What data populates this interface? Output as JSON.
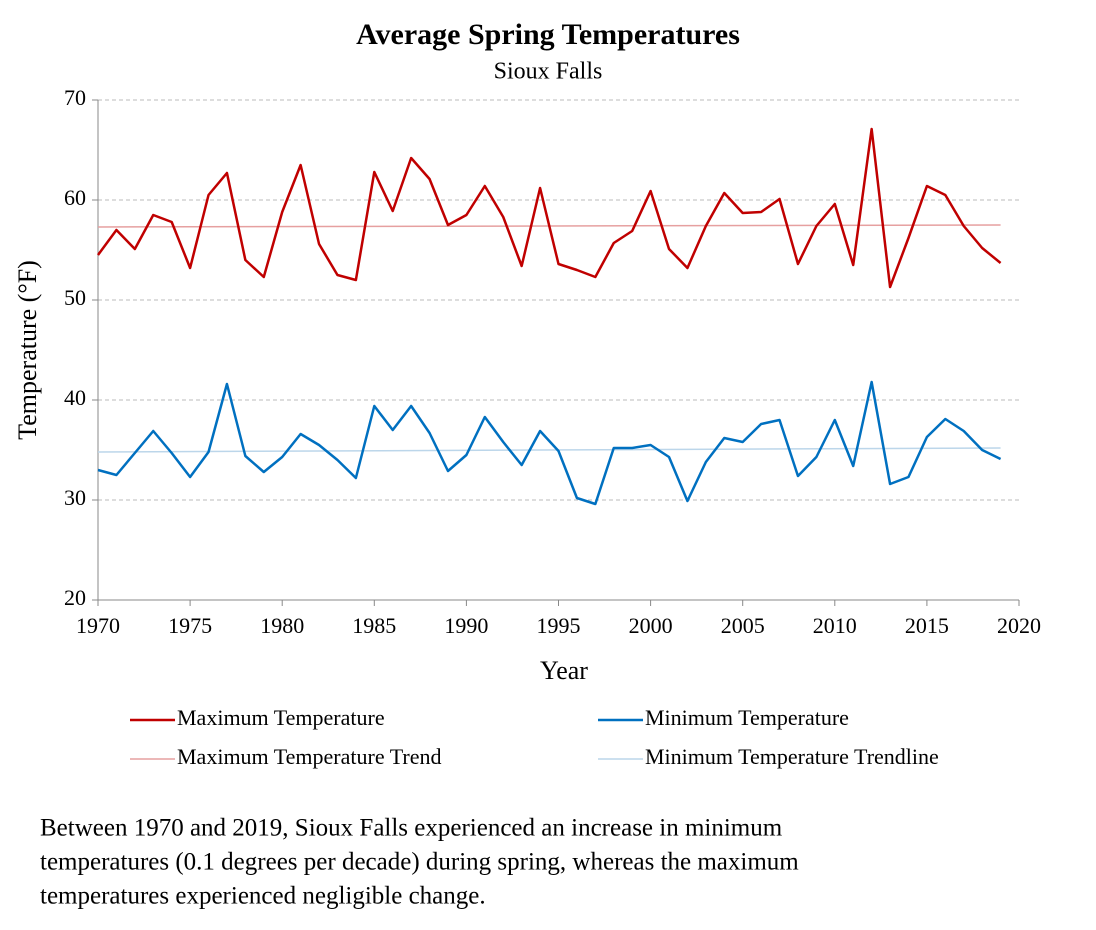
{
  "chart_data": {
    "type": "line",
    "title": "Average Spring Temperatures",
    "subtitle": "Sioux Falls",
    "x_label": "Year",
    "y_label": "Temperature (°F)",
    "x": [
      1970,
      1971,
      1972,
      1973,
      1974,
      1975,
      1976,
      1977,
      1978,
      1979,
      1980,
      1981,
      1982,
      1983,
      1984,
      1985,
      1986,
      1987,
      1988,
      1989,
      1990,
      1991,
      1992,
      1993,
      1994,
      1995,
      1996,
      1997,
      1998,
      1999,
      2000,
      2001,
      2002,
      2003,
      2004,
      2005,
      2006,
      2007,
      2008,
      2009,
      2010,
      2011,
      2012,
      2013,
      2014,
      2015,
      2016,
      2017,
      2018,
      2019
    ],
    "series": [
      {
        "name": "Maximum Temperature",
        "color": "#c00000",
        "width": 2.5,
        "values": [
          54.5,
          57,
          55.1,
          58.5,
          57.8,
          53.2,
          60.5,
          62.7,
          54,
          52.3,
          58.8,
          63.5,
          55.6,
          52.5,
          52,
          62.8,
          58.9,
          64.2,
          62.1,
          57.5,
          58.5,
          61.4,
          58.3,
          53.4,
          61.2,
          53.6,
          53,
          52.3,
          55.7,
          56.9,
          60.9,
          55.1,
          53.2,
          57.4,
          60.7,
          58.7,
          58.8,
          60.1,
          53.6,
          57.4,
          59.6,
          53.5,
          67.1,
          51.3,
          56.2,
          61.4,
          60.5,
          57.4,
          55.2,
          53.7
        ]
      },
      {
        "name": "Minimum Temperature",
        "color": "#0070c0",
        "width": 2.5,
        "values": [
          33,
          32.5,
          34.7,
          36.9,
          34.7,
          32.3,
          34.8,
          41.6,
          34.4,
          32.8,
          34.3,
          36.6,
          35.5,
          34,
          32.2,
          39.4,
          37,
          39.4,
          36.7,
          32.9,
          34.5,
          38.3,
          35.8,
          33.5,
          36.9,
          34.9,
          30.2,
          29.6,
          35.2,
          35.2,
          35.5,
          34.3,
          29.9,
          33.8,
          36.2,
          35.8,
          37.6,
          38,
          32.4,
          34.3,
          38,
          33.4,
          41.8,
          31.6,
          32.3,
          36.3,
          38.1,
          36.9,
          35,
          34.1
        ]
      },
      {
        "name": "Maximum Temperature Trend",
        "color": "#e6a0a0",
        "width": 1.5,
        "x": [
          1970,
          2019
        ],
        "values": [
          57.3,
          57.5
        ]
      },
      {
        "name": "Minimum Temperature Trendline",
        "color": "#bcd6ea",
        "width": 1.5,
        "x": [
          1970,
          2019
        ],
        "values": [
          34.8,
          35.2
        ]
      }
    ],
    "xlim": [
      1970,
      2020
    ],
    "xticks": [
      1970,
      1975,
      1980,
      1985,
      1990,
      1995,
      2000,
      2005,
      2010,
      2015,
      2020
    ],
    "ylim": [
      20,
      70
    ],
    "yticks": [
      20,
      30,
      40,
      50,
      60,
      70
    ],
    "grid": true,
    "caption": [
      "Between 1970 and 2019, Sioux Falls experienced an increase in minimum",
      "temperatures (0.1 degrees per decade) during spring, whereas the maximum",
      "temperatures experienced negligible change."
    ]
  }
}
